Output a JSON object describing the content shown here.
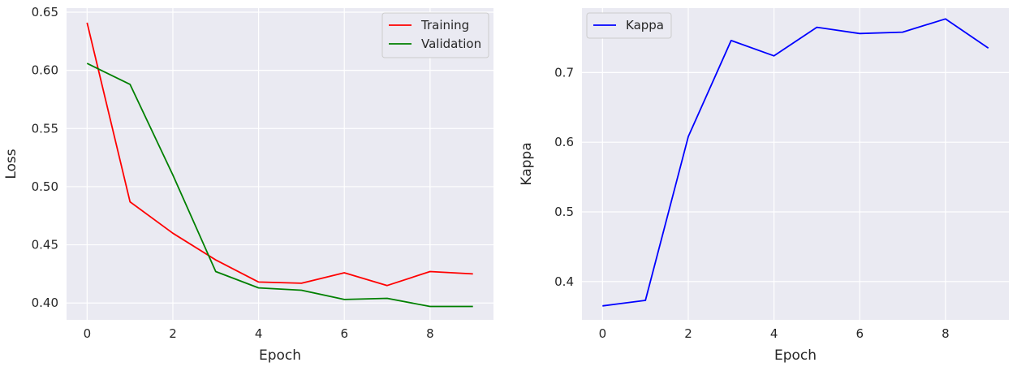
{
  "chart_data": [
    {
      "type": "line",
      "xlabel": "Epoch",
      "ylabel": "Loss",
      "x": [
        0,
        1,
        2,
        3,
        4,
        5,
        6,
        7,
        8,
        9
      ],
      "xlim": [
        -0.48,
        9.48
      ],
      "ylim": [
        0.3855,
        0.6535
      ],
      "xticks": [
        0,
        2,
        4,
        6,
        8
      ],
      "yticks": [
        0.4,
        0.45,
        0.5,
        0.55,
        0.6,
        0.65
      ],
      "ytick_labels": [
        "0.40",
        "0.45",
        "0.50",
        "0.55",
        "0.60",
        "0.65"
      ],
      "grid": true,
      "legend": "top-right",
      "series": [
        {
          "name": "Training",
          "color": "#ff0000",
          "values": [
            0.641,
            0.487,
            0.46,
            0.437,
            0.418,
            0.417,
            0.426,
            0.415,
            0.427,
            0.425
          ]
        },
        {
          "name": "Validation",
          "color": "#008000",
          "values": [
            0.606,
            0.588,
            0.51,
            0.427,
            0.413,
            0.411,
            0.403,
            0.404,
            0.397,
            0.397
          ]
        }
      ]
    },
    {
      "type": "line",
      "xlabel": "Epoch",
      "ylabel": "Kappa",
      "x": [
        0,
        1,
        2,
        3,
        4,
        5,
        6,
        7,
        8,
        9
      ],
      "xlim": [
        -0.48,
        9.48
      ],
      "ylim": [
        0.345,
        0.7925
      ],
      "xticks": [
        0,
        2,
        4,
        6,
        8
      ],
      "yticks": [
        0.4,
        0.5,
        0.6,
        0.7
      ],
      "ytick_labels": [
        "0.4",
        "0.5",
        "0.6",
        "0.7"
      ],
      "grid": true,
      "legend": "top-left",
      "series": [
        {
          "name": "Kappa",
          "color": "#0000ff",
          "values": [
            0.365,
            0.373,
            0.608,
            0.746,
            0.724,
            0.765,
            0.756,
            0.758,
            0.777,
            0.735
          ]
        }
      ]
    }
  ]
}
